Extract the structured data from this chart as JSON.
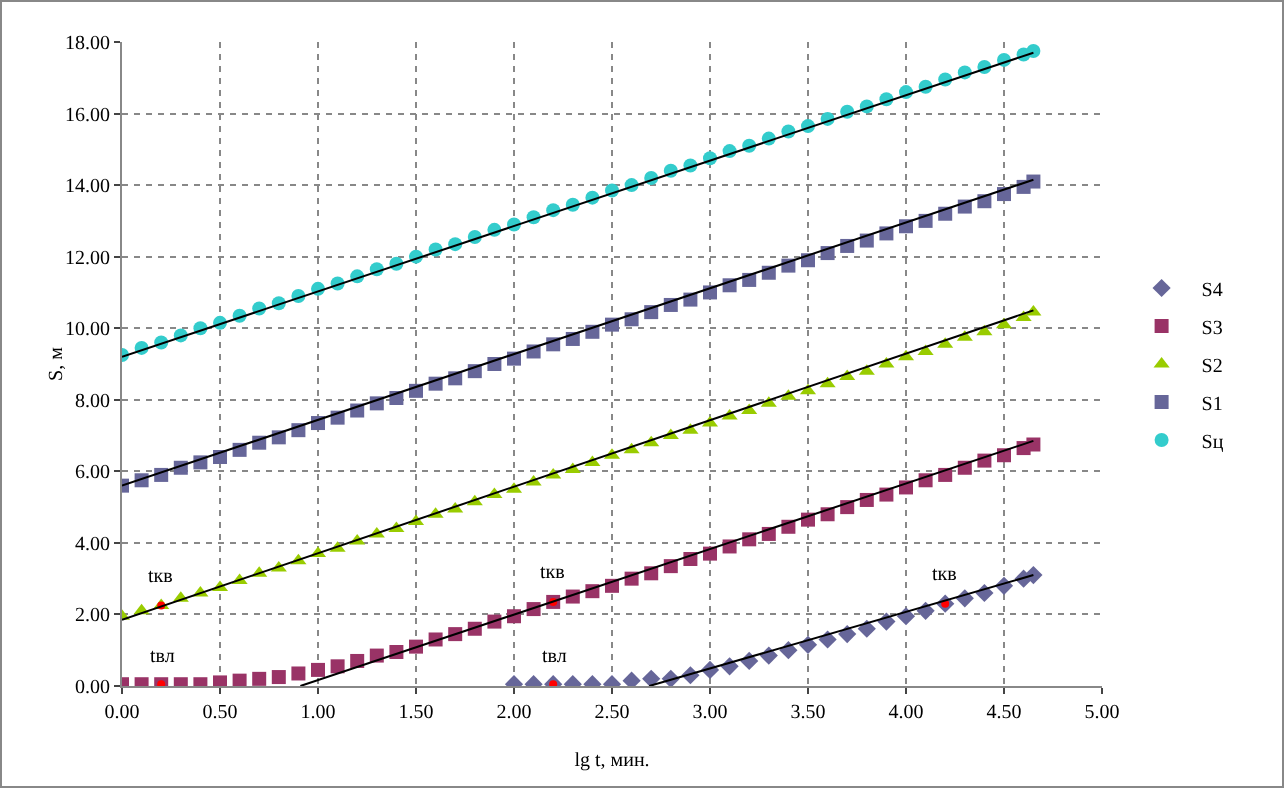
{
  "chart_data": {
    "type": "scatter",
    "xlabel": "lg t, мин.",
    "ylabel": "S, м",
    "x": [
      0,
      0.1,
      0.2,
      0.3,
      0.4,
      0.5,
      0.6,
      0.7,
      0.8,
      0.9,
      1.0,
      1.1,
      1.2,
      1.3,
      1.4,
      1.5,
      1.6,
      1.7,
      1.8,
      1.9,
      2.0,
      2.1,
      2.2,
      2.3,
      2.4,
      2.5,
      2.6,
      2.7,
      2.8,
      2.9,
      3.0,
      3.1,
      3.2,
      3.3,
      3.4,
      3.5,
      3.6,
      3.7,
      3.8,
      3.9,
      4.0,
      4.1,
      4.2,
      4.3,
      4.4,
      4.5,
      4.6,
      4.65
    ],
    "series": [
      {
        "name": "S4",
        "color": "#666699",
        "marker": "diamond",
        "values": [
          null,
          null,
          null,
          null,
          null,
          null,
          null,
          null,
          null,
          null,
          null,
          null,
          null,
          null,
          null,
          null,
          null,
          null,
          null,
          null,
          0.05,
          0.05,
          0.05,
          0.05,
          0.05,
          0.05,
          0.15,
          0.2,
          0.2,
          0.3,
          0.45,
          0.55,
          0.7,
          0.85,
          1.0,
          1.15,
          1.3,
          1.45,
          1.6,
          1.8,
          1.95,
          2.1,
          2.3,
          2.45,
          2.6,
          2.8,
          3.0,
          3.1
        ]
      },
      {
        "name": "S3",
        "color": "#993366",
        "marker": "square",
        "values": [
          0.05,
          0.05,
          0.05,
          0.05,
          0.05,
          0.1,
          0.15,
          0.2,
          0.25,
          0.35,
          0.45,
          0.55,
          0.7,
          0.85,
          0.95,
          1.1,
          1.3,
          1.45,
          1.6,
          1.8,
          1.95,
          2.15,
          2.35,
          2.5,
          2.65,
          2.8,
          3.0,
          3.15,
          3.35,
          3.55,
          3.7,
          3.9,
          4.1,
          4.25,
          4.45,
          4.65,
          4.8,
          5.0,
          5.2,
          5.35,
          5.55,
          5.75,
          5.9,
          6.1,
          6.3,
          6.45,
          6.65,
          6.75
        ]
      },
      {
        "name": "S2",
        "color": "#99cc00",
        "marker": "triangle",
        "values": [
          1.95,
          2.1,
          2.25,
          2.45,
          2.6,
          2.75,
          2.95,
          3.15,
          3.3,
          3.5,
          3.7,
          3.85,
          4.05,
          4.25,
          4.4,
          4.6,
          4.8,
          4.95,
          5.15,
          5.35,
          5.5,
          5.7,
          5.9,
          6.05,
          6.25,
          6.45,
          6.6,
          6.8,
          7.0,
          7.15,
          7.35,
          7.55,
          7.7,
          7.9,
          8.1,
          8.25,
          8.45,
          8.65,
          8.8,
          9.0,
          9.2,
          9.35,
          9.55,
          9.75,
          9.9,
          10.1,
          10.3,
          10.45
        ]
      },
      {
        "name": "S1",
        "color": "#666699",
        "marker": "square",
        "values": [
          5.6,
          5.75,
          5.9,
          6.1,
          6.25,
          6.4,
          6.6,
          6.8,
          6.95,
          7.15,
          7.35,
          7.5,
          7.7,
          7.9,
          8.05,
          8.25,
          8.45,
          8.6,
          8.8,
          9.0,
          9.15,
          9.35,
          9.55,
          9.7,
          9.9,
          10.1,
          10.25,
          10.45,
          10.65,
          10.8,
          11.0,
          11.2,
          11.35,
          11.55,
          11.75,
          11.9,
          12.1,
          12.3,
          12.45,
          12.65,
          12.85,
          13.0,
          13.2,
          13.4,
          13.55,
          13.75,
          13.95,
          14.1
        ]
      },
      {
        "name": "Sц",
        "color": "#33cccc",
        "marker": "circle",
        "values": [
          9.25,
          9.45,
          9.6,
          9.8,
          10.0,
          10.15,
          10.35,
          10.55,
          10.7,
          10.9,
          11.1,
          11.25,
          11.45,
          11.65,
          11.8,
          12.0,
          12.2,
          12.35,
          12.55,
          12.75,
          12.9,
          13.1,
          13.3,
          13.45,
          13.65,
          13.85,
          14.0,
          14.2,
          14.4,
          14.55,
          14.75,
          14.95,
          15.1,
          15.3,
          15.5,
          15.65,
          15.85,
          16.05,
          16.2,
          16.4,
          16.6,
          16.75,
          16.95,
          17.15,
          17.3,
          17.5,
          17.65,
          17.75
        ]
      },
      {
        "type": "scatter",
        "color": "#ff0000",
        "marker": "circle",
        "x": [
          0.2,
          0.2,
          2.2,
          2.2,
          4.2
        ],
        "values": [
          2.25,
          0.05,
          2.35,
          0.05,
          2.3
        ]
      },
      {
        "type": "line",
        "color": "#000000",
        "marker": "none",
        "x": [
          2.69,
          4.65
        ],
        "values": [
          0,
          3.1
        ]
      },
      {
        "type": "line",
        "color": "#000000",
        "marker": "none",
        "x": [
          0.91,
          4.65
        ],
        "values": [
          0,
          6.85
        ]
      },
      {
        "type": "line",
        "color": "#000000",
        "marker": "none",
        "x": [
          0,
          4.65
        ],
        "values": [
          1.85,
          10.5
        ]
      },
      {
        "type": "line",
        "color": "#000000",
        "marker": "none",
        "x": [
          0,
          4.65
        ],
        "values": [
          5.6,
          14.15
        ]
      },
      {
        "type": "line",
        "color": "#000000",
        "marker": "none",
        "x": [
          0,
          4.65
        ],
        "values": [
          9.2,
          17.7
        ]
      }
    ],
    "xlim": [
      0,
      5
    ],
    "xticks": [
      {
        "value": 0,
        "label": "0.00"
      },
      {
        "value": 0.5,
        "label": "0.50"
      },
      {
        "value": 1,
        "label": "1.00"
      },
      {
        "value": 1.5,
        "label": "1.50"
      },
      {
        "value": 2,
        "label": "2.00"
      },
      {
        "value": 2.5,
        "label": "2.50"
      },
      {
        "value": 3,
        "label": "3.00"
      },
      {
        "value": 3.5,
        "label": "3.50"
      },
      {
        "value": 4,
        "label": "4.00"
      },
      {
        "value": 4.5,
        "label": "4.50"
      },
      {
        "value": 5,
        "label": "5.00"
      }
    ],
    "ylim": [
      0,
      18
    ],
    "yticks": [
      {
        "value": 0,
        "label": "0.00"
      },
      {
        "value": 2,
        "label": "2.00"
      },
      {
        "value": 4,
        "label": "4.00"
      },
      {
        "value": 6,
        "label": "6.00"
      },
      {
        "value": 8,
        "label": "8.00"
      },
      {
        "value": 10,
        "label": "10.00"
      },
      {
        "value": 12,
        "label": "12.00"
      },
      {
        "value": 14,
        "label": "14.00"
      },
      {
        "value": 16,
        "label": "16.00"
      },
      {
        "value": 18,
        "label": "18.00"
      }
    ],
    "annotations": [
      {
        "text": "tкв",
        "x": 0.2,
        "y": 2.25
      },
      {
        "text": "tвл",
        "x": 0.2,
        "y": 0.05
      },
      {
        "text": "tкв",
        "x": 2.2,
        "y": 2.35
      },
      {
        "text": "tвл",
        "x": 2.2,
        "y": 0.05
      },
      {
        "text": "tкв",
        "x": 4.2,
        "y": 2.3
      }
    ],
    "grid": true,
    "legend": "right"
  }
}
